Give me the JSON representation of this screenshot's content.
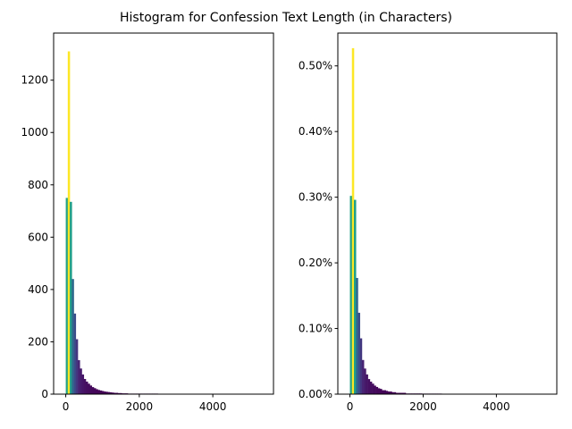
{
  "title": "Histogram for Confession Text Length (in Characters)",
  "chart_data": [
    {
      "type": "bar",
      "title": "",
      "xlabel": "",
      "ylabel": "",
      "xlim": [
        -330,
        5650
      ],
      "ylim": [
        0,
        1380
      ],
      "xticks": [
        0,
        2000,
        4000
      ],
      "xtick_labels": [
        "0",
        "2000",
        "4000"
      ],
      "yticks": [
        0,
        200,
        400,
        600,
        800,
        1000,
        1200
      ],
      "ytick_labels": [
        "0",
        "200",
        "400",
        "600",
        "800",
        "1000",
        "1200"
      ],
      "bin_width": 54.5,
      "bin_start": 0,
      "values": [
        750,
        1310,
        735,
        440,
        308,
        210,
        130,
        98,
        75,
        58,
        48,
        40,
        33,
        27,
        23,
        19,
        16,
        14,
        12,
        10,
        9,
        8,
        7,
        6,
        5,
        5,
        4,
        4,
        3,
        3,
        3,
        2,
        2,
        2,
        2,
        2,
        1,
        1,
        1,
        1,
        1,
        1,
        1,
        1,
        1,
        1
      ],
      "colormap": "viridis",
      "grid": false,
      "legend": "none"
    },
    {
      "type": "bar",
      "title": "",
      "xlabel": "",
      "ylabel": "",
      "xlim": [
        -330,
        5650
      ],
      "ylim": [
        0,
        0.55
      ],
      "y_format": "percent",
      "xticks": [
        0,
        2000,
        4000
      ],
      "xtick_labels": [
        "0",
        "2000",
        "4000"
      ],
      "yticks": [
        0,
        0.1,
        0.2,
        0.3,
        0.4,
        0.5
      ],
      "ytick_labels": [
        "0.00%",
        "0.10%",
        "0.20%",
        "0.30%",
        "0.40%",
        "0.50%"
      ],
      "bin_width": 54.5,
      "bin_start": 0,
      "values": [
        0.302,
        0.527,
        0.296,
        0.177,
        0.124,
        0.085,
        0.052,
        0.039,
        0.03,
        0.023,
        0.019,
        0.016,
        0.013,
        0.011,
        0.009,
        0.008,
        0.006,
        0.006,
        0.005,
        0.004,
        0.004,
        0.003,
        0.003,
        0.002,
        0.002,
        0.002,
        0.002,
        0.002,
        0.001,
        0.001,
        0.001,
        0.001,
        0.001,
        0.001,
        0.001,
        0.001,
        0.0005,
        0.0005,
        0.0005,
        0.0005,
        0.0005,
        0.0005,
        0.0005,
        0.0005,
        0.0005,
        0.0005
      ],
      "colormap": "viridis",
      "grid": false,
      "legend": "none"
    }
  ]
}
